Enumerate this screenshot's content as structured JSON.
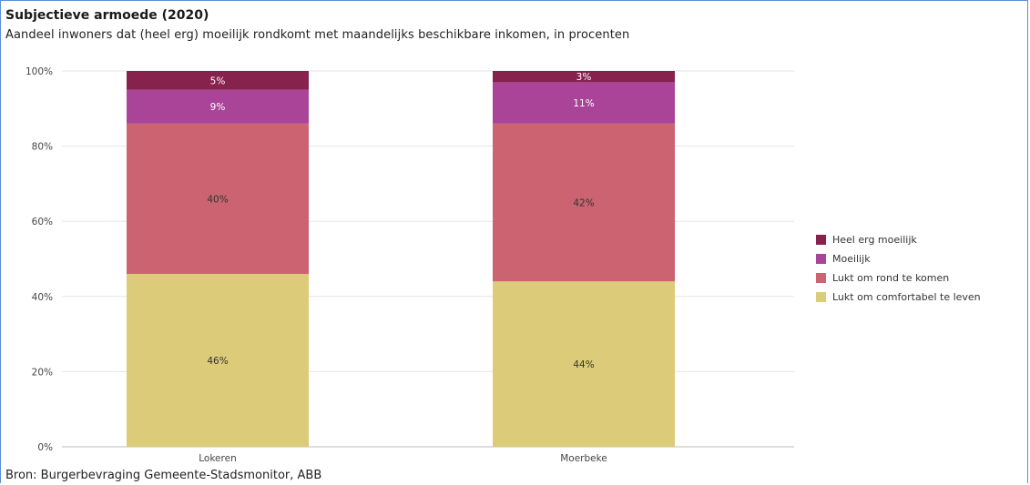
{
  "title": "Subjectieve armoede  (2020)",
  "subtitle": "Aandeel inwoners dat (heel erg) moeilijk rondkomt met maandelijks beschikbare inkomen, in procenten",
  "source": "Bron: Burgerbevraging Gemeente-Stadsmonitor, ABB",
  "chart_data": {
    "type": "bar",
    "stacked": true,
    "categories": [
      "Lokeren",
      "Moerbeke"
    ],
    "series": [
      {
        "name": "Lukt om comfortabel te leven",
        "values": [
          46,
          44
        ],
        "labels": [
          "46%",
          "44%"
        ],
        "color": "#dccb78",
        "label_color": "#333333"
      },
      {
        "name": "Lukt om rond te komen",
        "values": [
          40,
          42
        ],
        "labels": [
          "40%",
          "42%"
        ],
        "color": "#cb6470",
        "label_color": "#333333"
      },
      {
        "name": "Moeilijk",
        "values": [
          9,
          11
        ],
        "labels": [
          "9%",
          "11%"
        ],
        "color": "#a94499",
        "label_color": "#ffffff"
      },
      {
        "name": "Heel erg moeilijk",
        "values": [
          5,
          3
        ],
        "labels": [
          "5%",
          "3%"
        ],
        "color": "#87214e",
        "label_color": "#ffffff"
      }
    ],
    "ylim": [
      0,
      100
    ],
    "yticks": [
      "0%",
      "20%",
      "40%",
      "60%",
      "80%",
      "100%"
    ],
    "grid": true,
    "legend_position": "right",
    "legend_order": [
      "Heel erg moeilijk",
      "Moeilijk",
      "Lukt om rond te komen",
      "Lukt om comfortabel te leven"
    ]
  }
}
